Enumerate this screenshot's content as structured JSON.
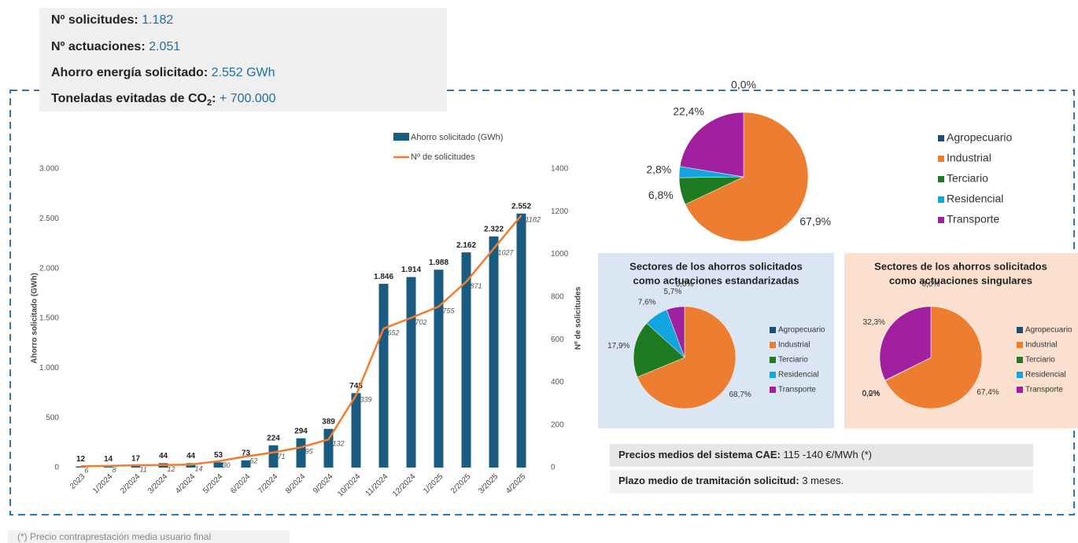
{
  "stats": [
    {
      "label": "Nº solicitudes:",
      "value": "1.182"
    },
    {
      "label": "Nº actuaciones:",
      "value": "2.051"
    },
    {
      "label": "Ahorro energía solicitado:",
      "value": "2.552 GWh"
    },
    {
      "label": "Toneladas evitadas de CO",
      "sub": "2",
      "suffix": ":",
      "value": "+ 700.000"
    }
  ],
  "notes": [
    {
      "label": "Precios medios del sistema CAE:",
      "value": " 115 -140 €/MWh (*)"
    },
    {
      "label": "Plazo medio de tramitación solicitud:",
      "value": " 3 meses."
    }
  ],
  "footnote": "(*) Precio contraprestación media usuario final",
  "chart_data": [
    {
      "type": "bar_line",
      "categories": [
        "2023",
        "1/2024",
        "2/2024",
        "3/2024",
        "4/2024",
        "5/2024",
        "6/2024",
        "7/2024",
        "8/2024",
        "9/2024",
        "10/2024",
        "11/2024",
        "12/2024",
        "1/2025",
        "2/2025",
        "3/2025",
        "4/2025"
      ],
      "y_label": "Ahorro solicitado (GWh)",
      "y2_label": "Nº de solicitudes",
      "series": [
        {
          "name": "Ahorro solicitado (GWh)",
          "color": "#1b5b80",
          "values": [
            12,
            14,
            17,
            44,
            44,
            53,
            73,
            224,
            294,
            389,
            748,
            1846,
            1914,
            1988,
            2162,
            2322,
            2552
          ],
          "value_labels": [
            "12",
            "14",
            "17",
            "44",
            "44",
            "53",
            "73",
            "224",
            "294",
            "389",
            "748",
            "1.846",
            "1.914",
            "1.988",
            "2.162",
            "2.322",
            "2.552"
          ]
        },
        {
          "name": "Nº de solicitudes",
          "color": "#ed7d31",
          "axis": "y2",
          "values": [
            6,
            8,
            11,
            12,
            14,
            30,
            52,
            71,
            95,
            132,
            339,
            652,
            702,
            755,
            871,
            1027,
            1182
          ]
        }
      ],
      "ylim": [
        0,
        3000
      ],
      "yticks": [
        0,
        500,
        {
          "value": 1000,
          "label": "1.000"
        },
        {
          "value": 1500,
          "label": "1.500"
        },
        {
          "value": 2000,
          "label": "2.000"
        },
        {
          "value": 2500,
          "label": "2.500"
        },
        {
          "value": 3000,
          "label": "3.000"
        }
      ],
      "y2lim": [
        0,
        1400
      ],
      "y2ticks": [
        0,
        200,
        400,
        600,
        800,
        1000,
        1200,
        1400
      ]
    },
    {
      "type": "pie",
      "categories": [
        "Agropecuario",
        "Industrial",
        "Terciario",
        "Residencial",
        "Transporte"
      ],
      "colors": [
        "#1b4f78",
        "#ed7d31",
        "#1e7b22",
        "#12a6e0",
        "#a020a0"
      ],
      "values": [
        0.0,
        67.9,
        6.8,
        2.8,
        22.4
      ],
      "value_labels": [
        "0,0%",
        "67,9%",
        "6,8%",
        "2,8%",
        "22,4%"
      ]
    },
    {
      "type": "pie",
      "title": [
        "Sectores de los ahorros solicitados",
        "como actuaciones estandarizadas"
      ],
      "categories": [
        "Agropecuario",
        "Industrial",
        "Terciario",
        "Residencial",
        "Transporte"
      ],
      "colors": [
        "#1b4f78",
        "#ed7d31",
        "#1e7b22",
        "#12a6e0",
        "#a020a0"
      ],
      "values": [
        0.0,
        68.7,
        17.9,
        7.6,
        5.7
      ],
      "value_labels": [
        "0,0%",
        "68,7%",
        "17,9%",
        "7,6%",
        "5,7%"
      ]
    },
    {
      "type": "pie",
      "title": [
        "Sectores de los ahorros solicitados",
        "como actuaciones singulares"
      ],
      "categories": [
        "Agropecuario",
        "Industrial",
        "Terciario",
        "Residencial",
        "Transporte"
      ],
      "colors": [
        "#1b4f78",
        "#ed7d31",
        "#1e7b22",
        "#12a6e0",
        "#a020a0"
      ],
      "values": [
        0.0,
        67.4,
        0.2,
        0.0,
        32.3
      ],
      "value_labels": [
        "0,0%",
        "67,4%",
        "0,2%",
        "0,0%",
        "32,3%"
      ]
    }
  ]
}
